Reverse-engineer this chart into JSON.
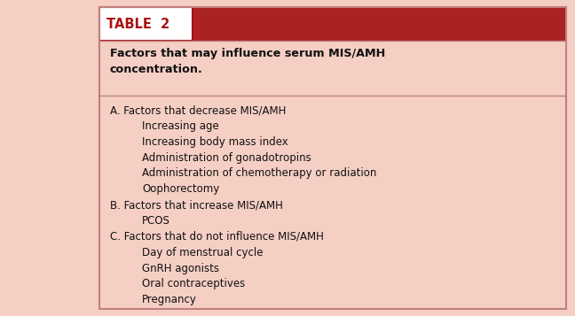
{
  "table_label": "TABLE  2",
  "table_label_bg": "#ffffff",
  "table_label_text_color": "#aa1111",
  "table_label_border": "#aa1111",
  "header_bar_bg": "#aa2222",
  "subtitle": "Factors that may influence serum MIS/AMH\nconcentration.",
  "subtitle_bg": "#f5cfc4",
  "body_bg": "#f5cfc4",
  "border_color": "#c08080",
  "outer_bg": "#f5cfc4",
  "body_lines": [
    {
      "text": "A. Factors that decrease MIS/AMH",
      "indent": 0
    },
    {
      "text": "Increasing age",
      "indent": 1
    },
    {
      "text": "Increasing body mass index",
      "indent": 1
    },
    {
      "text": "Administration of gonadotropins",
      "indent": 1
    },
    {
      "text": "Administration of chemotherapy or radiation",
      "indent": 1
    },
    {
      "text": "Oophorectomy",
      "indent": 1
    },
    {
      "text": "B. Factors that increase MIS/AMH",
      "indent": 0
    },
    {
      "text": "PCOS",
      "indent": 1
    },
    {
      "text": "C. Factors that do not influence MIS/AMH",
      "indent": 0
    },
    {
      "text": "Day of menstrual cycle",
      "indent": 1
    },
    {
      "text": "GnRH agonists",
      "indent": 1
    },
    {
      "text": "Oral contraceptives",
      "indent": 1
    },
    {
      "text": "Pregnancy",
      "indent": 1
    }
  ],
  "font_size_label": 10.5,
  "font_size_subtitle": 9.2,
  "font_size_body": 8.5,
  "figsize": [
    6.48,
    3.57
  ],
  "dpi": 100
}
